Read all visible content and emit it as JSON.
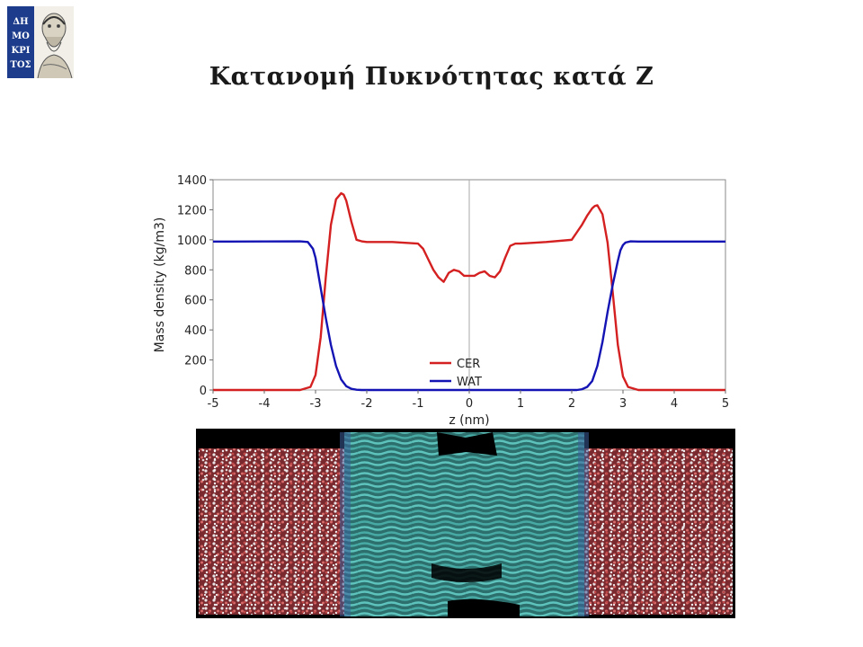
{
  "slide": {
    "title": "Κατανομή Πυκνότητας κατά Z",
    "logo_text": [
      "ΔΗ",
      "ΜΟ",
      "ΚΡΙ",
      "ΤΟΣ"
    ]
  },
  "colors": {
    "cer": "#d42020",
    "wat": "#1414b4",
    "logo_bg": "#1d3d8c",
    "water_bg": "#6a1e22",
    "lipid": "#3fa6a0"
  },
  "chart_data": {
    "type": "line",
    "xlabel": "z (nm)",
    "ylabel": "Mass density (kg/m3)",
    "xlim": [
      -5,
      5
    ],
    "ylim": [
      0,
      1400
    ],
    "xticks": [
      -5,
      -4,
      -3,
      -2,
      -1,
      0,
      1,
      2,
      3,
      4,
      5
    ],
    "yticks": [
      0,
      200,
      400,
      600,
      800,
      1000,
      1200,
      1400
    ],
    "grid": "x=0 and y=0 lines only",
    "legend_position": "bottom-center",
    "series": [
      {
        "name": "CER",
        "color": "#d42020",
        "x": [
          -5,
          -3.3,
          -3.1,
          -3.0,
          -2.9,
          -2.8,
          -2.7,
          -2.6,
          -2.5,
          -2.45,
          -2.4,
          -2.3,
          -2.2,
          -2.1,
          -2.0,
          -1.5,
          -1.0,
          -0.9,
          -0.8,
          -0.7,
          -0.6,
          -0.5,
          -0.4,
          -0.3,
          -0.2,
          -0.1,
          0.0,
          0.1,
          0.2,
          0.3,
          0.4,
          0.5,
          0.6,
          0.7,
          0.8,
          0.9,
          1.0,
          1.5,
          2.0,
          2.1,
          2.2,
          2.3,
          2.4,
          2.45,
          2.5,
          2.6,
          2.7,
          2.8,
          2.9,
          3.0,
          3.1,
          3.3,
          5
        ],
        "y": [
          0,
          0,
          20,
          100,
          350,
          750,
          1100,
          1270,
          1310,
          1300,
          1260,
          1120,
          1000,
          990,
          985,
          985,
          975,
          940,
          870,
          800,
          750,
          720,
          780,
          800,
          790,
          760,
          760,
          760,
          780,
          790,
          760,
          750,
          790,
          880,
          960,
          975,
          975,
          985,
          1000,
          1050,
          1100,
          1160,
          1210,
          1225,
          1230,
          1170,
          980,
          650,
          300,
          90,
          20,
          0,
          0
        ]
      },
      {
        "name": "WAT",
        "color": "#1414b4",
        "x": [
          -5,
          -3.3,
          -3.15,
          -3.05,
          -3.0,
          -2.95,
          -2.9,
          -2.8,
          -2.7,
          -2.6,
          -2.5,
          -2.4,
          -2.3,
          -2.2,
          -2.1,
          2.1,
          2.2,
          2.3,
          2.4,
          2.5,
          2.6,
          2.7,
          2.8,
          2.9,
          2.95,
          3.0,
          3.05,
          3.15,
          3.3,
          5
        ],
        "y": [
          988,
          990,
          985,
          940,
          880,
          780,
          680,
          480,
          300,
          160,
          70,
          25,
          8,
          2,
          0,
          0,
          5,
          20,
          60,
          160,
          320,
          520,
          700,
          860,
          930,
          965,
          982,
          990,
          988,
          988
        ]
      }
    ]
  }
}
